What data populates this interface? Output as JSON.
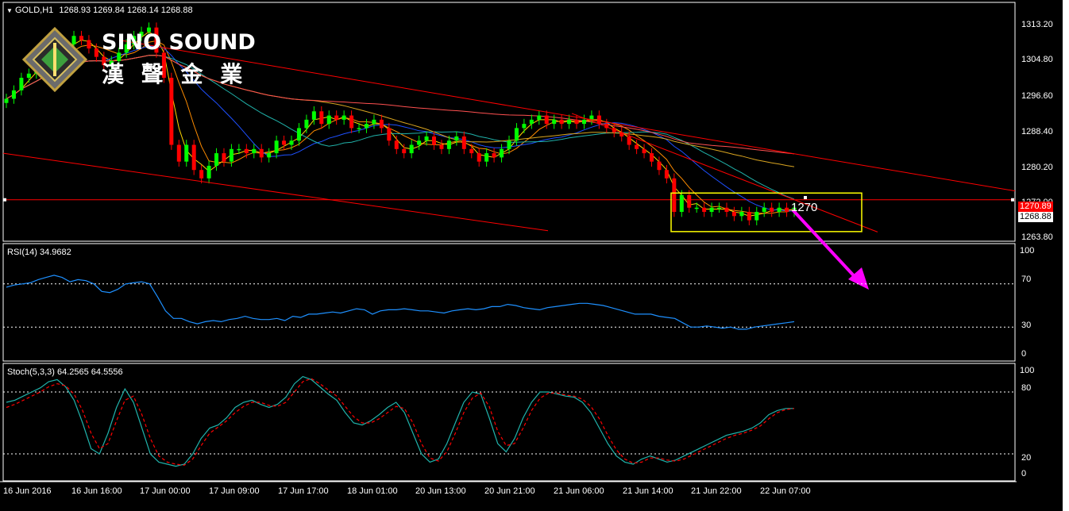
{
  "header": {
    "symbol": "GOLD,H1",
    "ohlc": "1268.93 1269.84 1268.14 1268.88"
  },
  "logo": {
    "name": "SINO SOUND",
    "chinese": "漢 聲 金 業"
  },
  "price_axis": {
    "ticks": [
      "1313.20",
      "1304.80",
      "1296.60",
      "1288.40",
      "1280.20",
      "1272.00",
      "1263.80"
    ],
    "current_price": "1268.88",
    "line_price": "1270.89",
    "annotation": "1270"
  },
  "rsi": {
    "label": "RSI(14) 34.9682",
    "levels": [
      "100",
      "70",
      "30",
      "0"
    ]
  },
  "stoch": {
    "label": "Stoch(5,3,3) 64.2565 64.5556",
    "levels": [
      "100",
      "80",
      "20",
      "0"
    ]
  },
  "time_axis": {
    "labels": [
      "16 Jun 2016",
      "16 Jun 16:00",
      "17 Jun 00:00",
      "17 Jun 09:00",
      "17 Jun 17:00",
      "18 Jun 01:00",
      "20 Jun 13:00",
      "20 Jun 21:00",
      "21 Jun 06:00",
      "21 Jun 14:00",
      "21 Jun 22:00",
      "22 Jun 07:00"
    ]
  },
  "colors": {
    "background": "#000000",
    "bull_candle": "#00ff00",
    "bear_candle": "#ff0000",
    "trend_line": "#ff0000",
    "highlight_box": "#ffff00",
    "arrow": "#ff00ff",
    "rsi_line": "#1e90ff",
    "stoch_main": "#20b2aa",
    "stoch_signal": "#ff0000"
  },
  "chart_data": [
    {
      "type": "candlestick",
      "title": "GOLD,H1",
      "ylim": [
        1261,
        1318
      ],
      "closes": [
        1295,
        1297,
        1300,
        1301,
        1303,
        1305,
        1307,
        1306,
        1308,
        1310,
        1309,
        1307,
        1305,
        1303,
        1304,
        1306,
        1308,
        1310,
        1311,
        1312,
        1306,
        1300,
        1284,
        1280,
        1284,
        1278,
        1276,
        1279,
        1282,
        1280,
        1283,
        1283,
        1282,
        1283,
        1281,
        1282,
        1285,
        1284,
        1285,
        1288,
        1290,
        1292,
        1289,
        1291,
        1290,
        1291,
        1288,
        1288,
        1289,
        1290,
        1288,
        1285,
        1283,
        1282,
        1284,
        1285,
        1286,
        1284,
        1283,
        1285,
        1286,
        1283,
        1282,
        1280,
        1282,
        1281,
        1283,
        1285,
        1288,
        1289,
        1290,
        1291,
        1289,
        1290,
        1289,
        1290,
        1289,
        1290,
        1291,
        1289,
        1288,
        1287,
        1286,
        1284,
        1283,
        1282,
        1280,
        1278,
        1276,
        1268,
        1272,
        1269,
        1269,
        1268,
        1269,
        1269,
        1268,
        1267,
        1268,
        1266,
        1268,
        1269,
        1268,
        1269,
        1268,
        1269
      ]
    },
    {
      "type": "line",
      "title": "RSI(14)",
      "ylim": [
        0,
        100
      ],
      "series": [
        {
          "values": [
            67,
            69,
            70,
            71,
            74,
            76,
            78,
            76,
            72,
            74,
            73,
            70,
            63,
            62,
            65,
            70,
            71,
            72,
            70,
            58,
            45,
            38,
            38,
            35,
            33,
            35,
            36,
            35,
            37,
            38,
            40,
            38,
            37,
            37,
            38,
            36,
            40,
            39,
            42,
            42,
            43,
            44,
            43,
            45,
            47,
            46,
            42,
            45,
            46,
            46,
            47,
            46,
            45,
            45,
            44,
            43,
            45,
            46,
            47,
            46,
            47,
            49,
            49,
            51,
            50,
            48,
            47,
            46,
            48,
            49,
            50,
            51,
            52,
            52,
            51,
            50,
            48,
            46,
            44,
            42,
            42,
            42,
            40,
            39,
            38,
            34,
            30,
            30,
            31,
            30,
            29,
            30,
            28,
            28,
            30,
            31,
            32,
            33,
            34,
            35
          ]
        }
      ]
    },
    {
      "type": "line",
      "title": "Stoch(5,3,3)",
      "ylim": [
        0,
        100
      ],
      "series": [
        {
          "values": [
            70,
            72,
            76,
            80,
            84,
            90,
            92,
            85,
            72,
            50,
            25,
            20,
            40,
            65,
            83,
            70,
            45,
            20,
            12,
            10,
            8,
            10,
            20,
            35,
            45,
            48,
            55,
            65,
            70,
            72,
            68,
            65,
            68,
            75,
            88,
            95,
            92,
            85,
            78,
            72,
            60,
            50,
            48,
            52,
            58,
            65,
            70,
            60,
            40,
            20,
            12,
            15,
            30,
            50,
            70,
            80,
            78,
            55,
            30,
            22,
            35,
            55,
            70,
            80,
            80,
            78,
            76,
            75,
            70,
            60,
            45,
            30,
            18,
            12,
            10,
            15,
            18,
            15,
            12,
            14,
            18,
            22,
            26,
            30,
            34,
            38,
            40,
            42,
            45,
            50,
            58,
            62,
            64,
            64
          ]
        },
        {
          "values": [
            65,
            68,
            72,
            76,
            80,
            85,
            88,
            86,
            78,
            62,
            40,
            25,
            30,
            52,
            72,
            76,
            58,
            35,
            18,
            12,
            10,
            9,
            15,
            28,
            40,
            46,
            52,
            60,
            66,
            70,
            70,
            67,
            66,
            70,
            80,
            90,
            93,
            88,
            82,
            76,
            66,
            56,
            50,
            50,
            54,
            60,
            66,
            64,
            50,
            30,
            16,
            13,
            22,
            40,
            60,
            74,
            79,
            66,
            42,
            28,
            30,
            45,
            62,
            74,
            79,
            79,
            77,
            76,
            73,
            66,
            54,
            38,
            24,
            15,
            11,
            12,
            16,
            16,
            14,
            13,
            15,
            19,
            23,
            27,
            31,
            35,
            38,
            40,
            43,
            47,
            54,
            60,
            63,
            64
          ]
        }
      ]
    }
  ]
}
